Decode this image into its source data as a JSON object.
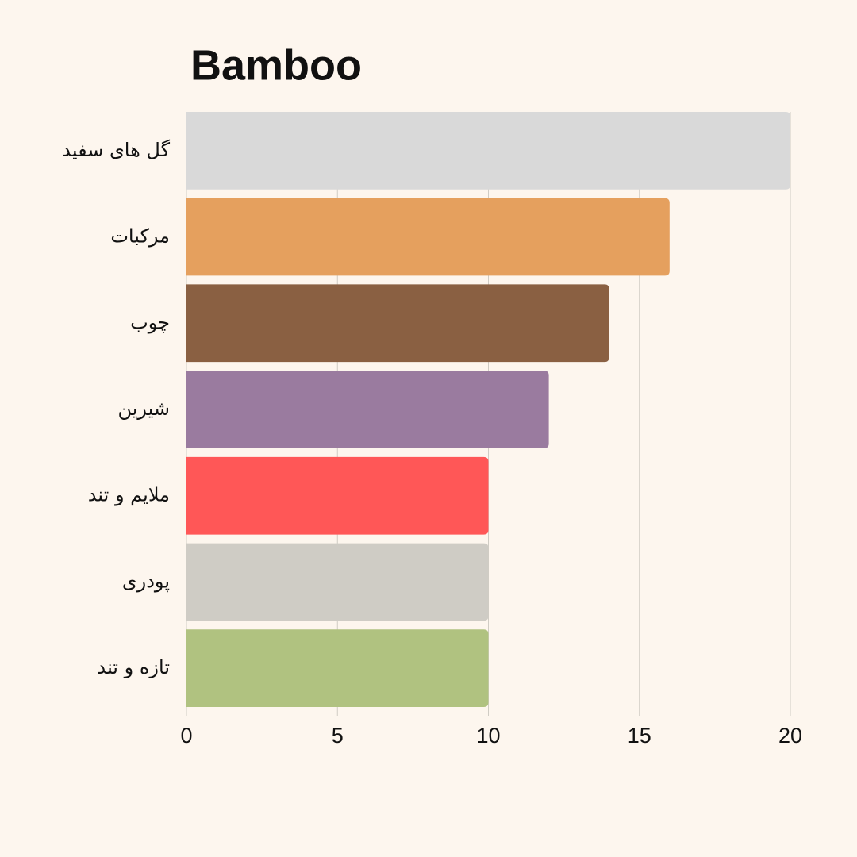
{
  "chart_data": {
    "type": "bar",
    "orientation": "horizontal",
    "title": "Bamboo",
    "categories": [
      "گل های سفید",
      "مرکبات",
      "چوب",
      "شیرین",
      "ملایم و تند",
      "پودری",
      "تازه و تند"
    ],
    "values": [
      20,
      16,
      14,
      12,
      10,
      10,
      10
    ],
    "colors": [
      "#d9d9d9",
      "#e5a05e",
      "#8a6042",
      "#9a7b9f",
      "#ff5757",
      "#cfccc5",
      "#b0c280"
    ],
    "xlim": [
      0,
      20
    ],
    "xticks": [
      0,
      5,
      10,
      15,
      20
    ],
    "grid": true
  }
}
